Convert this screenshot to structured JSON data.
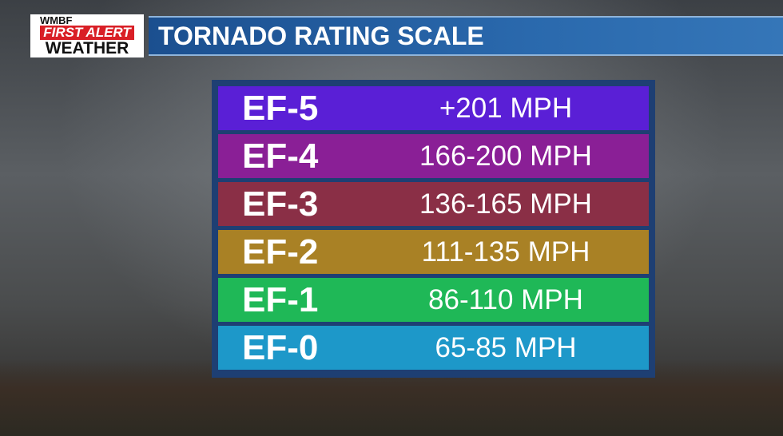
{
  "header": {
    "logo": [
      "WMBF",
      "FIRST ALERT",
      "WEATHER"
    ],
    "title": "TORNADO RATING SCALE"
  },
  "table": {
    "rows": [
      {
        "rating": "EF-5",
        "speed": "+201 MPH",
        "color": "#5a1fd6"
      },
      {
        "rating": "EF-4",
        "speed": "166-200 MPH",
        "color": "#8a1f96"
      },
      {
        "rating": "EF-3",
        "speed": "136-165 MPH",
        "color": "#8a2f46"
      },
      {
        "rating": "EF-2",
        "speed": "111-135 MPH",
        "color": "#a98125"
      },
      {
        "rating": "EF-1",
        "speed": "86-110 MPH",
        "color": "#1fb857"
      },
      {
        "rating": "EF-0",
        "speed": "65-85 MPH",
        "color": "#1d98c9"
      }
    ]
  }
}
